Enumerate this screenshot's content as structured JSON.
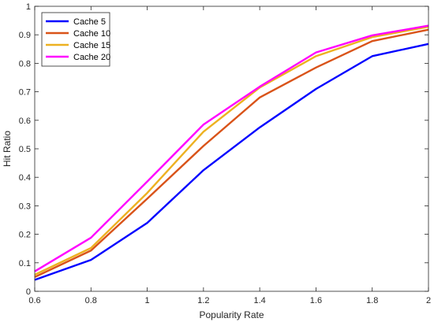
{
  "chart_data": {
    "type": "line",
    "title": "",
    "xlabel": "Popularity Rate",
    "ylabel": "Hit Ratio",
    "x": [
      0.6,
      0.8,
      1.0,
      1.2,
      1.4,
      1.6,
      1.8,
      2.0
    ],
    "xlim": [
      0.6,
      2.0
    ],
    "ylim": [
      0,
      1
    ],
    "xticks": [
      "0.6",
      "0.8",
      "1",
      "1.2",
      "1.4",
      "1.6",
      "1.8",
      "2"
    ],
    "yticks": [
      "0",
      "0.1",
      "0.2",
      "0.3",
      "0.4",
      "0.5",
      "0.6",
      "0.7",
      "0.8",
      "0.9",
      "1"
    ],
    "grid": false,
    "legend_position": "top-left",
    "series": [
      {
        "name": "Cache 5",
        "color": "#0000ff",
        "values": [
          0.04,
          0.11,
          0.24,
          0.425,
          0.575,
          0.71,
          0.825,
          0.868
        ]
      },
      {
        "name": "Cache 10",
        "color": "#d95319",
        "values": [
          0.05,
          0.143,
          0.325,
          0.51,
          0.68,
          0.785,
          0.878,
          0.918
        ]
      },
      {
        "name": "Cache 15",
        "color": "#edb120",
        "values": [
          0.058,
          0.152,
          0.345,
          0.56,
          0.715,
          0.825,
          0.892,
          0.928
        ]
      },
      {
        "name": "Cache 20",
        "color": "#ff00ff",
        "values": [
          0.07,
          0.188,
          0.385,
          0.585,
          0.718,
          0.838,
          0.898,
          0.932
        ]
      }
    ]
  }
}
